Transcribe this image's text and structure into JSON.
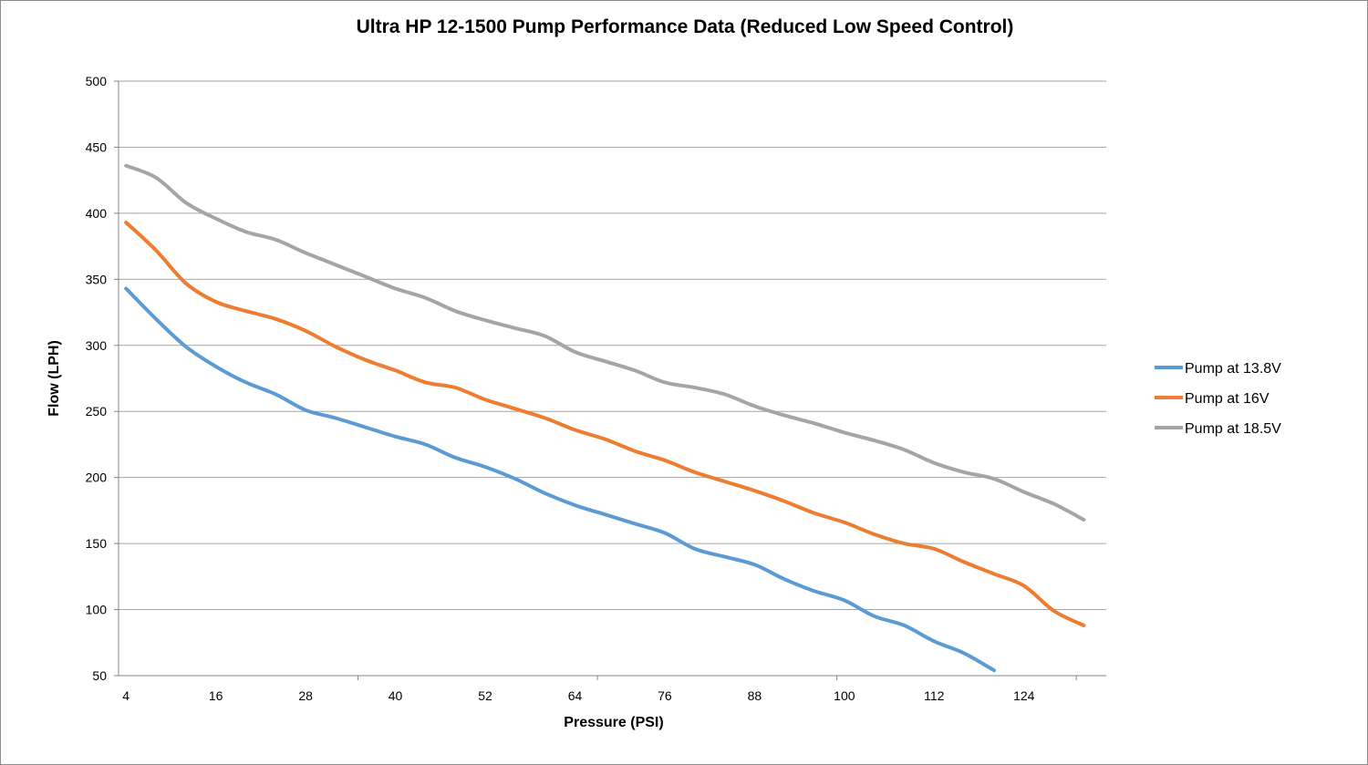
{
  "chart_data": {
    "type": "line",
    "title": "Ultra HP 12-1500 Pump Performance Data (Reduced Low Speed  Control)",
    "xlabel": "Pressure (PSI)",
    "ylabel": "Flow (LPH)",
    "xlim": [
      3,
      135
    ],
    "ylim": [
      50,
      500
    ],
    "x_ticks": [
      4,
      16,
      28,
      40,
      52,
      64,
      76,
      88,
      100,
      112,
      124
    ],
    "y_ticks": [
      50,
      100,
      150,
      200,
      250,
      300,
      350,
      400,
      450,
      500
    ],
    "grid": true,
    "legend_position": "right",
    "series": [
      {
        "name": "Pump at 13.8V",
        "color": "#5b9bd5",
        "x": [
          4,
          8,
          12,
          16,
          20,
          24,
          28,
          32,
          36,
          40,
          44,
          48,
          52,
          56,
          60,
          64,
          68,
          72,
          76,
          80,
          84,
          88,
          92,
          96,
          100,
          104,
          108,
          112,
          116,
          120
        ],
        "y": [
          343,
          320,
          299,
          284,
          272,
          263,
          251,
          245,
          238,
          231,
          225,
          215,
          208,
          199,
          188,
          179,
          172,
          165,
          158,
          146,
          140,
          134,
          123,
          114,
          107,
          95,
          88,
          76,
          67,
          54
        ]
      },
      {
        "name": "Pump at 16V",
        "color": "#ed7d31",
        "x": [
          4,
          8,
          12,
          16,
          20,
          24,
          28,
          32,
          36,
          40,
          44,
          48,
          52,
          56,
          60,
          64,
          68,
          72,
          76,
          80,
          84,
          88,
          92,
          96,
          100,
          104,
          108,
          112,
          116,
          120,
          124,
          128,
          132
        ],
        "y": [
          393,
          372,
          347,
          333,
          326,
          320,
          311,
          299,
          289,
          281,
          272,
          268,
          259,
          252,
          245,
          236,
          229,
          220,
          213,
          204,
          197,
          190,
          182,
          173,
          166,
          157,
          150,
          146,
          136,
          127,
          118,
          99,
          88
        ]
      },
      {
        "name": "Pump at 18.5V",
        "color": "#a5a5a5",
        "x": [
          4,
          8,
          12,
          16,
          20,
          24,
          28,
          32,
          36,
          40,
          44,
          48,
          52,
          56,
          60,
          64,
          68,
          72,
          76,
          80,
          84,
          88,
          92,
          96,
          100,
          104,
          108,
          112,
          116,
          120,
          124,
          128,
          132
        ],
        "y": [
          436,
          427,
          408,
          396,
          386,
          380,
          370,
          361,
          352,
          343,
          336,
          326,
          319,
          313,
          307,
          295,
          288,
          281,
          272,
          268,
          263,
          254,
          247,
          241,
          234,
          228,
          221,
          211,
          204,
          199,
          189,
          180,
          168
        ]
      }
    ]
  }
}
